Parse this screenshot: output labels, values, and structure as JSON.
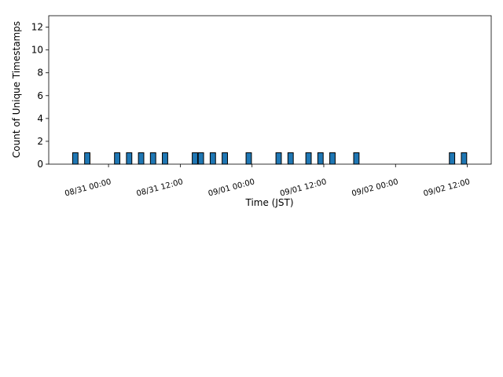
{
  "chart_data": {
    "type": "bar",
    "xlabel": "Time (JST)",
    "ylabel": "Count of Unique Timestamps",
    "x": [
      "08/30 18:00",
      "08/30 20:00",
      "08/31 01:00",
      "08/31 03:00",
      "08/31 05:00",
      "08/31 07:00",
      "08/31 09:00",
      "08/31 14:00",
      "08/31 15:00",
      "08/31 17:00",
      "08/31 19:00",
      "08/31 23:00",
      "09/01 04:00",
      "09/01 06:00",
      "09/01 09:00",
      "09/01 11:00",
      "09/01 13:00",
      "09/01 17:00",
      "09/02 09:00",
      "09/02 11:00"
    ],
    "values": [
      1,
      1,
      1,
      1,
      1,
      1,
      1,
      1,
      1,
      1,
      1,
      1,
      1,
      1,
      1,
      1,
      1,
      1,
      1,
      1
    ],
    "color": "#1f77b4",
    "xlim": [
      "08/30 14:00",
      "09/02 16:00"
    ],
    "xticks": [
      "08/31 00:00",
      "08/31 12:00",
      "09/01 00:00",
      "09/01 12:00",
      "09/02 00:00",
      "09/02 12:00"
    ],
    "ylim": [
      0,
      13
    ],
    "yticks": [
      0,
      2,
      4,
      6,
      8,
      10,
      12
    ]
  }
}
